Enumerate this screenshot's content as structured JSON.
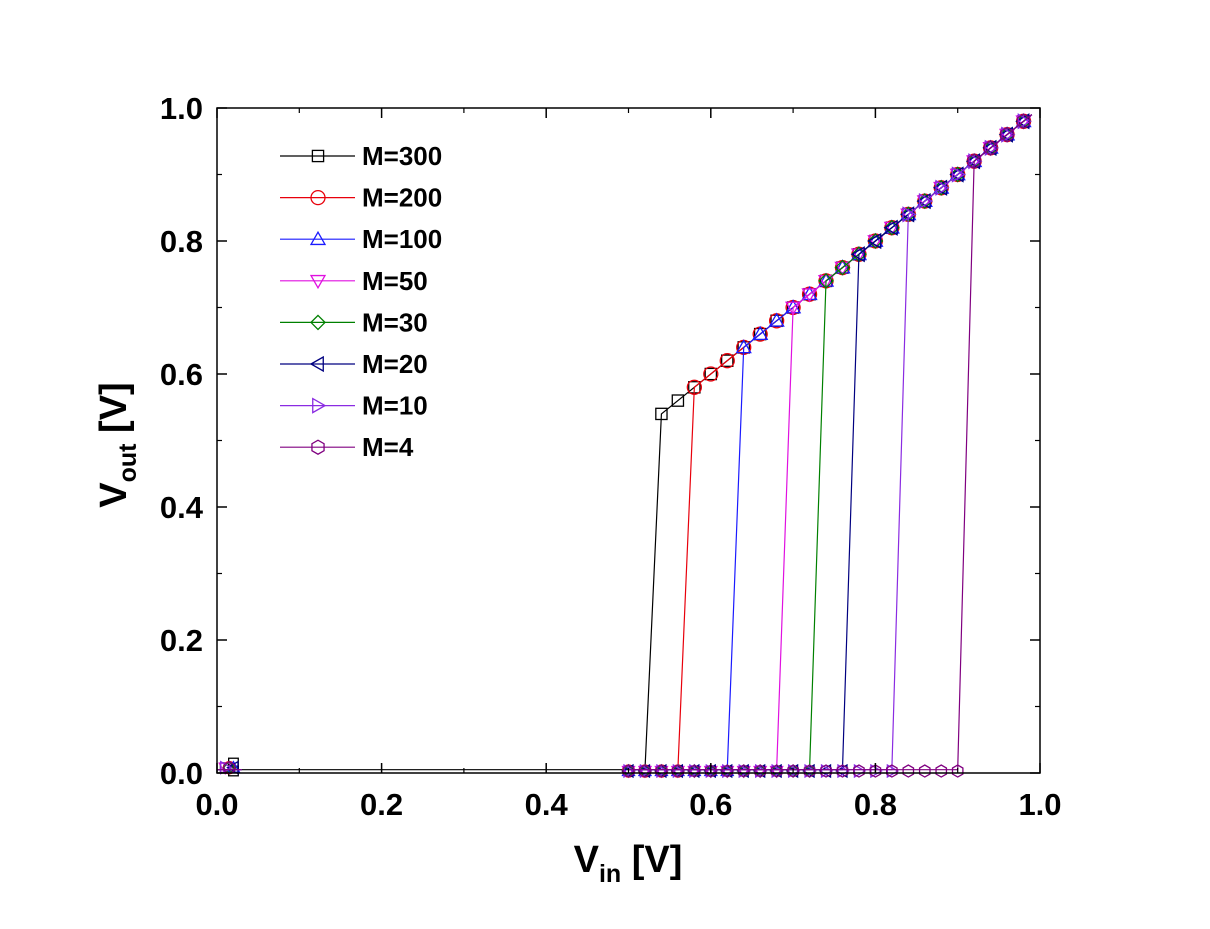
{
  "chart_data": {
    "type": "line",
    "title": "",
    "xlabel": {
      "main": "V",
      "sub": "in",
      "unit": " [V]"
    },
    "ylabel": {
      "main": "V",
      "sub": "out",
      "unit": " [V]"
    },
    "xlim": [
      0,
      1
    ],
    "ylim": [
      0,
      1
    ],
    "xticks": [
      "0.0",
      "0.2",
      "0.4",
      "0.6",
      "0.8",
      "1.0"
    ],
    "yticks": [
      "0.0",
      "0.2",
      "0.4",
      "0.6",
      "0.8",
      "1.0"
    ],
    "grid": false,
    "legend_position": "top-left",
    "series": [
      {
        "name": "M=300",
        "color": "#000000",
        "marker": "square",
        "vth": 0.52,
        "low": [
          0.02
        ],
        "highStart": 0.54
      },
      {
        "name": "M=200",
        "color": "#e8000b",
        "marker": "circle",
        "vth": 0.56,
        "low": [
          0.5,
          0.52,
          0.54
        ],
        "highStart": 0.58
      },
      {
        "name": "M=100",
        "color": "#1a1aff",
        "marker": "triangle-up",
        "vth": 0.62,
        "low": [
          0.5,
          0.52,
          0.54,
          0.56,
          0.58,
          0.6
        ],
        "highStart": 0.64
      },
      {
        "name": "M=50",
        "color": "#e010e0",
        "marker": "triangle-down",
        "vth": 0.68,
        "low": [
          0.5,
          0.52,
          0.54,
          0.56,
          0.58,
          0.6,
          0.62,
          0.64,
          0.66
        ],
        "highStart": 0.7
      },
      {
        "name": "M=30",
        "color": "#008000",
        "marker": "diamond",
        "vth": 0.72,
        "low": [
          0.5,
          0.52,
          0.54,
          0.56,
          0.58,
          0.6,
          0.62,
          0.64,
          0.66,
          0.68,
          0.7
        ],
        "highStart": 0.74
      },
      {
        "name": "M=20",
        "color": "#000080",
        "marker": "triangle-left",
        "vth": 0.76,
        "low": [
          0.5,
          0.52,
          0.54,
          0.56,
          0.58,
          0.6,
          0.62,
          0.64,
          0.66,
          0.68,
          0.7,
          0.72,
          0.74
        ],
        "highStart": 0.78
      },
      {
        "name": "M=10",
        "color": "#8a2be2",
        "marker": "triangle-right",
        "vth": 0.82,
        "low": [
          0.5,
          0.52,
          0.54,
          0.56,
          0.58,
          0.6,
          0.62,
          0.64,
          0.66,
          0.68,
          0.7,
          0.72,
          0.74,
          0.76,
          0.78,
          0.8
        ],
        "highStart": 0.84
      },
      {
        "name": "M=4",
        "color": "#800080",
        "marker": "hexagon",
        "vth": 0.9,
        "low": [
          0.5,
          0.52,
          0.54,
          0.56,
          0.58,
          0.6,
          0.62,
          0.64,
          0.66,
          0.68,
          0.7,
          0.72,
          0.74,
          0.76,
          0.78,
          0.8,
          0.82,
          0.84,
          0.86,
          0.88
        ],
        "highStart": 0.92
      }
    ]
  }
}
